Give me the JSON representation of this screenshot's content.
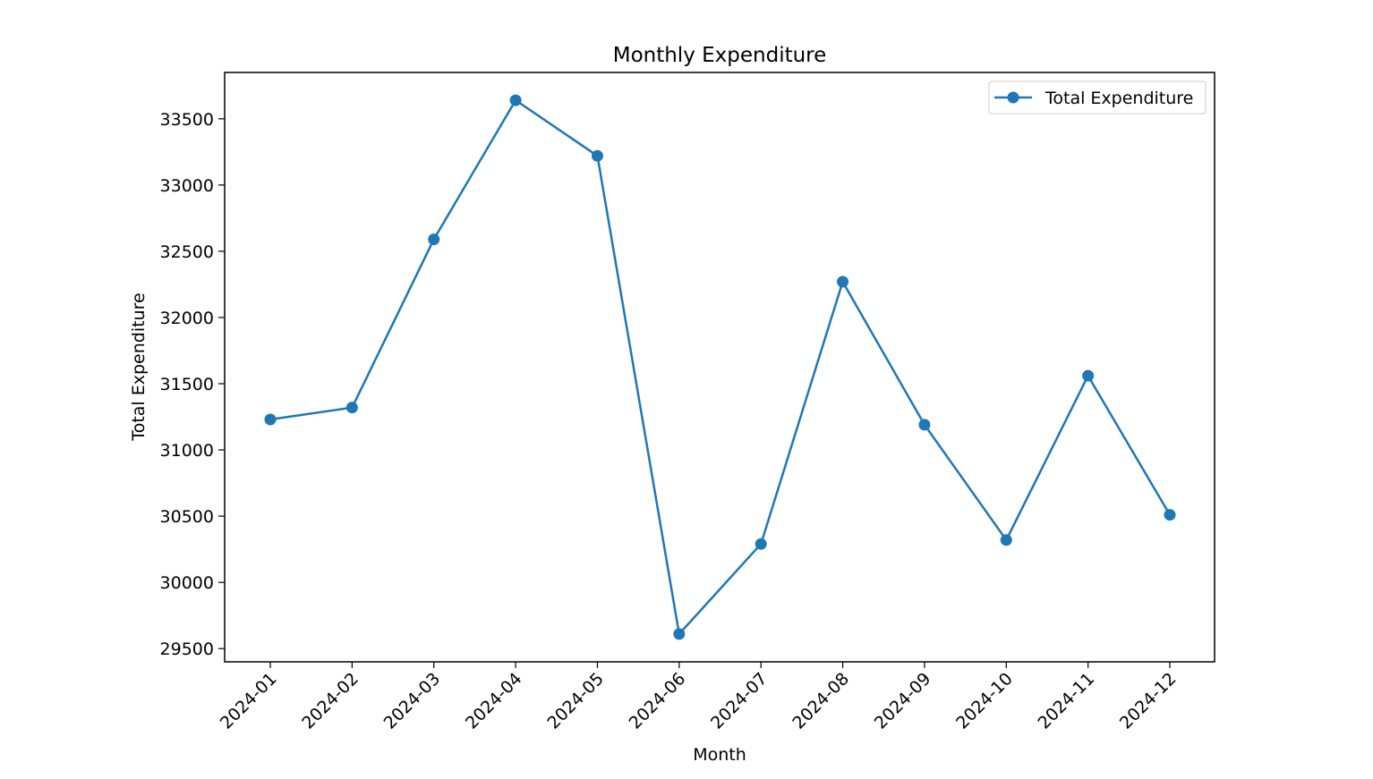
{
  "chart_data": {
    "type": "line",
    "title": "Monthly Expenditure",
    "xlabel": "Month",
    "ylabel": "Total Expenditure",
    "categories": [
      "2024-01",
      "2024-02",
      "2024-03",
      "2024-04",
      "2024-05",
      "2024-06",
      "2024-07",
      "2024-08",
      "2024-09",
      "2024-10",
      "2024-11",
      "2024-12"
    ],
    "series": [
      {
        "name": "Total Expenditure",
        "color": "#1f77b4",
        "marker": "circle",
        "values": [
          31230,
          31320,
          32590,
          33640,
          33220,
          29610,
          30290,
          32270,
          31190,
          30320,
          31560,
          30510
        ]
      }
    ],
    "yticks": [
      29500,
      30000,
      30500,
      31000,
      31500,
      32000,
      32500,
      33000,
      33500
    ],
    "ylim": [
      29400,
      33850
    ],
    "grid": false,
    "legend": "top-right"
  }
}
